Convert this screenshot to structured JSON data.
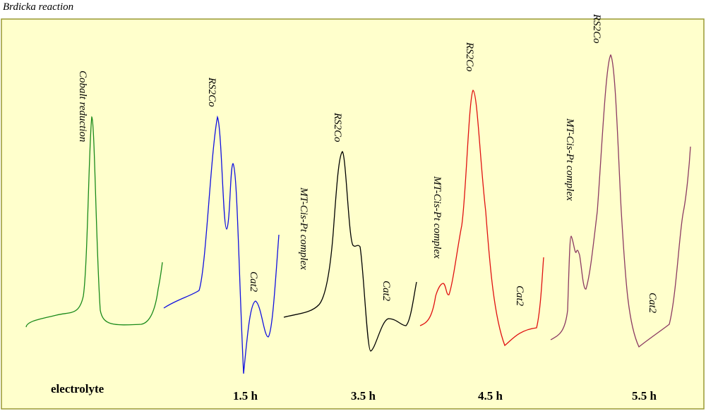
{
  "title": "Brdicka reaction",
  "panels": [
    {
      "label": "electrolyte",
      "annotations": [
        "Cobalt reduction"
      ]
    },
    {
      "label": "1.5 h",
      "annotations": [
        "RS2Co",
        "Cat2"
      ]
    },
    {
      "label": "3.5 h",
      "annotations": [
        "RS2Co",
        "MT-Cis-Pt complex",
        "Cat2"
      ]
    },
    {
      "label": "4.5 h",
      "annotations": [
        "RS2Co",
        "MT-Cis-Pt complex",
        "Cat2"
      ]
    },
    {
      "label": "5.5 h",
      "annotations": [
        "RS2Co",
        "MT-Cis-Pt complex",
        "Cat2"
      ]
    }
  ]
}
